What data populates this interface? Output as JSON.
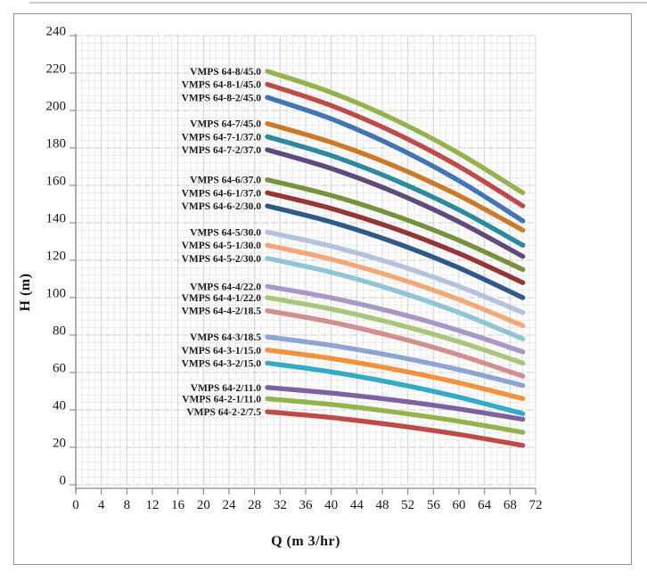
{
  "chart_data": {
    "type": "line",
    "title": "",
    "xlabel": "Q (m 3/hr)",
    "ylabel": "H (m)",
    "grid": true,
    "legend_position": "labels-left-of-curve-start",
    "x_axis": {
      "min": 0,
      "max": 72,
      "minor_step": 1,
      "ticks": [
        0,
        4,
        8,
        12,
        16,
        20,
        24,
        28,
        32,
        36,
        40,
        44,
        48,
        52,
        56,
        60,
        64,
        68,
        72
      ]
    },
    "y_axis": {
      "min": 0,
      "max": 240,
      "minor_step": 4,
      "ticks": [
        0,
        20,
        40,
        60,
        80,
        100,
        120,
        140,
        160,
        180,
        200,
        220,
        240
      ]
    },
    "x": [
      30,
      40,
      50,
      60,
      70
    ],
    "series": [
      {
        "label": "VMPS 64-8/45.0",
        "color": "#94B34C",
        "values": [
          221,
          209.6,
          195.0,
          177.1,
          156
        ]
      },
      {
        "label": "VMPS 64-8-1/45.0",
        "color": "#BE4B48",
        "values": [
          214,
          202.6,
          188.0,
          170.1,
          149
        ]
      },
      {
        "label": "VMPS 64-8-2/45.0",
        "color": "#4176B6",
        "values": [
          207,
          195.5,
          180.6,
          162.5,
          141
        ]
      },
      {
        "label": "VMPS 64-7/45.0",
        "color": "#CB7A28",
        "values": [
          193,
          183.0,
          170.2,
          154.5,
          136
        ]
      },
      {
        "label": "VMPS 64-7-1/37.0",
        "color": "#2C8A9E",
        "values": [
          186,
          175.9,
          162.8,
          146.9,
          128
        ]
      },
      {
        "label": "VMPS 64-7-2/37.0",
        "color": "#5F4A7E",
        "values": [
          179,
          169.0,
          156.2,
          140.5,
          122
        ]
      },
      {
        "label": "VMPS 64-6/37.0",
        "color": "#76923C",
        "values": [
          163,
          154.6,
          143.8,
          130.6,
          115
        ]
      },
      {
        "label": "VMPS 64-6-1/37.0",
        "color": "#943734",
        "values": [
          156,
          147.6,
          136.8,
          123.6,
          108
        ]
      },
      {
        "label": "VMPS 64-6-2/30.0",
        "color": "#2D5A88",
        "values": [
          149,
          140.4,
          129.4,
          115.9,
          100
        ]
      },
      {
        "label": "VMPS 64-5/30.0",
        "color": "#B3C2DD",
        "values": [
          135,
          127.5,
          117.8,
          106.0,
          92
        ]
      },
      {
        "label": "VMPS 64-5-1/30.0",
        "color": "#F2A977",
        "values": [
          128,
          120.5,
          110.8,
          99.0,
          85
        ]
      },
      {
        "label": "VMPS 64-5-2/30.0",
        "color": "#8FC5D4",
        "values": [
          121,
          113.5,
          103.8,
          92.0,
          78
        ]
      },
      {
        "label": "VMPS 64-4/22.0",
        "color": "#A798C5",
        "values": [
          106,
          99.9,
          92.0,
          82.4,
          71
        ]
      },
      {
        "label": "VMPS 64-4-1/22.0",
        "color": "#A8C77D",
        "values": [
          100,
          93.9,
          86.0,
          76.4,
          65
        ]
      },
      {
        "label": "VMPS 64-4-2/18.5",
        "color": "#D0908D",
        "values": [
          93,
          86.9,
          79.0,
          69.4,
          58
        ]
      },
      {
        "label": "VMPS 64-3/18.5",
        "color": "#8CA6D3",
        "values": [
          79,
          74.5,
          68.6,
          61.5,
          53
        ]
      },
      {
        "label": "VMPS 64-3-1/15.0",
        "color": "#F2923D",
        "values": [
          72,
          67.5,
          61.6,
          54.5,
          46
        ]
      },
      {
        "label": "VMPS 64-3-2/15.0",
        "color": "#35AAC4",
        "values": [
          65,
          60.3,
          54.2,
          46.8,
          38
        ]
      },
      {
        "label": "VMPS 64-2/11.0",
        "color": "#7D61A0",
        "values": [
          52,
          49.0,
          45.2,
          40.5,
          35
        ]
      },
      {
        "label": "VMPS 64-2-1/11.0",
        "color": "#94B34C",
        "values": [
          46,
          42.9,
          38.8,
          33.9,
          28
        ]
      },
      {
        "label": "VMPS 64-2-2/7.5",
        "color": "#BE4B48",
        "values": [
          39,
          35.9,
          31.8,
          26.9,
          21
        ]
      }
    ]
  }
}
